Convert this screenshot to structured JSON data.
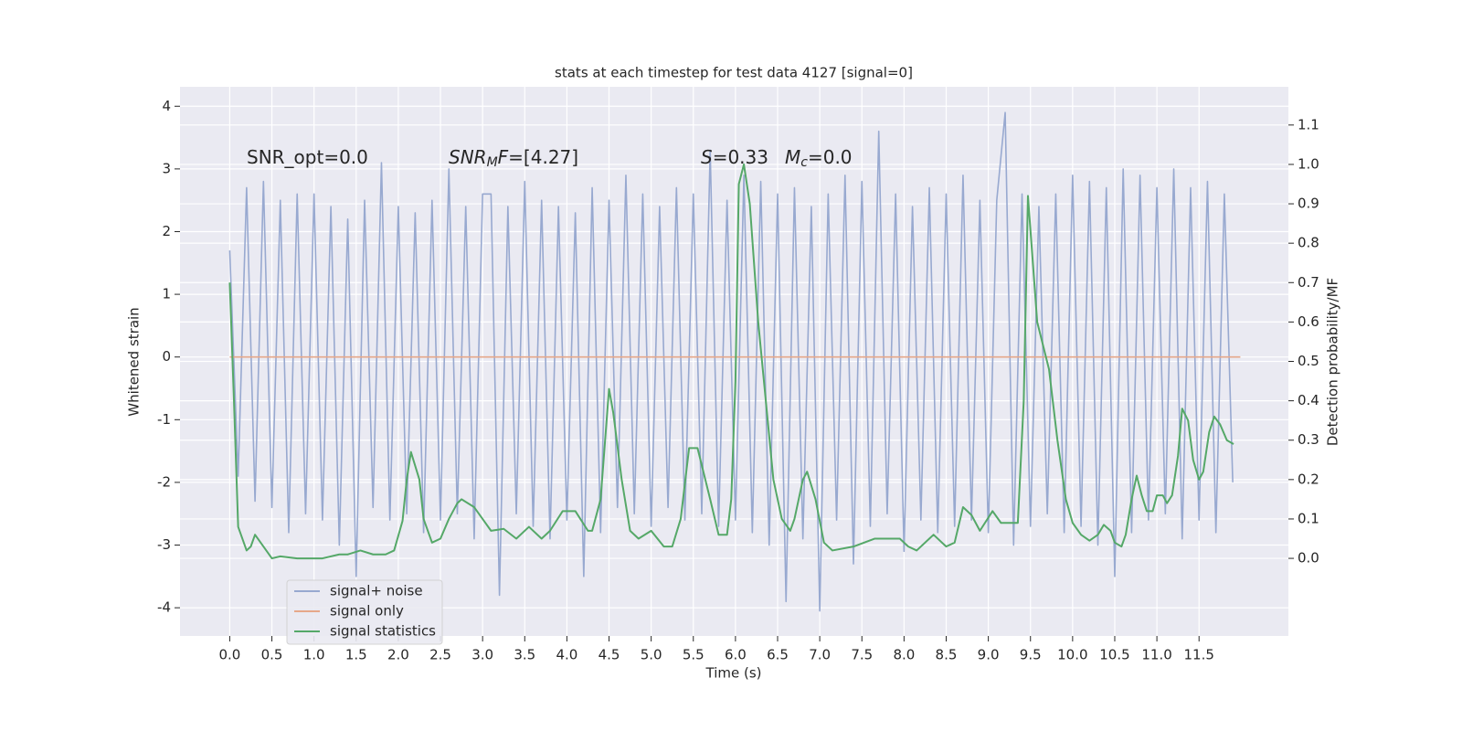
{
  "chart_data": {
    "type": "line",
    "title": "stats at each timestep for test data 4127 [signal=0]",
    "xlabel": "Time (s)",
    "ylabel": "Whitened strain",
    "y2label": "Detection probability/MF",
    "grid": true,
    "legend": "lower left",
    "xlim": [
      -0.59,
      12.56
    ],
    "ylim": [
      -4.45,
      4.31
    ],
    "y2lim": [
      -0.197,
      1.197
    ],
    "xticks": [
      {
        "value": 0,
        "label": "0.0"
      },
      0.5,
      {
        "value": 1,
        "label": "1.0"
      },
      1.5,
      {
        "value": 2,
        "label": "2.0"
      },
      2.5,
      {
        "value": 3,
        "label": "3.0"
      },
      3.5,
      {
        "value": 4,
        "label": "4.0"
      },
      4.5,
      {
        "value": 5,
        "label": "5.0"
      },
      5.5,
      {
        "value": 6,
        "label": "6.0"
      },
      6.5,
      {
        "value": 7,
        "label": "7.0"
      },
      7.5,
      {
        "value": 8,
        "label": "8.0"
      },
      8.5,
      {
        "value": 9,
        "label": "9.0"
      },
      9.5,
      {
        "value": 10,
        "label": "10.0"
      },
      10.5,
      {
        "value": 11,
        "label": "11.0"
      },
      11.5
    ],
    "yticks": [
      -4,
      -3,
      -2,
      -1,
      0,
      1,
      2,
      3,
      4
    ],
    "y2ticks": [
      {
        "value": 0,
        "label": "0.0"
      },
      0.1,
      0.2,
      0.3,
      0.4,
      0.5,
      0.6,
      0.7,
      0.8,
      0.9,
      {
        "value": 1,
        "label": "1.0"
      },
      1.1
    ],
    "annotations": [
      {
        "parts": [
          {
            "text": "SNR_opt=0.0"
          }
        ]
      },
      {
        "parts": [
          {
            "text": "SNR",
            "italic": true
          },
          {
            "text": "M",
            "italic": true,
            "sub": true
          },
          {
            "text": "F",
            "italic": true
          },
          {
            "text": "=[4.27]"
          }
        ]
      },
      {
        "parts": [
          {
            "text": "S",
            "italic": true
          },
          {
            "text": "=0.33"
          }
        ]
      },
      {
        "parts": [
          {
            "text": "M",
            "italic": true
          },
          {
            "text": "c",
            "italic": true,
            "sub": true
          },
          {
            "text": "=0.0"
          }
        ]
      }
    ],
    "series": [
      {
        "name": "signal+ noise",
        "color": "#98a9d0",
        "x": [
          0,
          0.1,
          0.2,
          0.3,
          0.4,
          0.5,
          0.6,
          0.7,
          0.8,
          0.9,
          1,
          1.1,
          1.2,
          1.3,
          1.4,
          1.5,
          1.6,
          1.7,
          1.8,
          1.9,
          2,
          2.1,
          2.2,
          2.3,
          2.4,
          2.5,
          2.6,
          2.7,
          2.8,
          2.9,
          3,
          3.1,
          3.2,
          3.3,
          3.4,
          3.5,
          3.6,
          3.7,
          3.8,
          3.9,
          4,
          4.1,
          4.2,
          4.3,
          4.4,
          4.5,
          4.6,
          4.7,
          4.8,
          4.9,
          5,
          5.1,
          5.2,
          5.3,
          5.4,
          5.5,
          5.6,
          5.7,
          5.8,
          5.9,
          6,
          6.1,
          6.2,
          6.3,
          6.4,
          6.5,
          6.6,
          6.7,
          6.8,
          6.9,
          7,
          7.1,
          7.2,
          7.3,
          7.4,
          7.5,
          7.6,
          7.7,
          7.8,
          7.9,
          8,
          8.1,
          8.2,
          8.3,
          8.4,
          8.5,
          8.6,
          8.7,
          8.8,
          8.9,
          9,
          9.1,
          9.2,
          9.3,
          9.4,
          9.5,
          9.6,
          9.7,
          9.8,
          9.9,
          10,
          10.1,
          10.2,
          10.3,
          10.4,
          10.5,
          10.6,
          10.7,
          10.8,
          10.9,
          11,
          11.1,
          11.2,
          11.3,
          11.4,
          11.5,
          11.6,
          11.7,
          11.8,
          11.9
        ],
        "values": [
          1.7,
          -1.9,
          2.7,
          -2.3,
          2.8,
          -2.4,
          2.5,
          -2.8,
          2.6,
          -2.5,
          2.6,
          -2.6,
          2.4,
          -3.0,
          2.2,
          -3.5,
          2.5,
          -2.4,
          3.1,
          -2.6,
          2.4,
          -2.5,
          2.3,
          -2.8,
          2.5,
          -2.6,
          3.0,
          -2.5,
          2.4,
          -2.9,
          2.6,
          2.6,
          -3.8,
          2.4,
          -2.5,
          2.8,
          -2.7,
          2.5,
          -2.9,
          2.4,
          -2.6,
          2.3,
          -3.5,
          2.7,
          -2.8,
          2.5,
          -2.4,
          2.9,
          -2.5,
          2.6,
          -2.7,
          2.4,
          -2.4,
          2.7,
          -2.6,
          2.6,
          -2.5,
          3.3,
          -2.7,
          2.5,
          -2.6,
          2.9,
          -2.8,
          2.8,
          -3.0,
          2.6,
          -3.9,
          2.7,
          -2.9,
          2.4,
          -4.05,
          2.6,
          -2.6,
          2.9,
          -3.3,
          2.8,
          -2.7,
          3.6,
          -2.5,
          2.6,
          -3.1,
          2.4,
          -2.6,
          2.7,
          -2.8,
          2.6,
          -2.7,
          2.9,
          -2.6,
          2.5,
          -2.8,
          2.5,
          3.9,
          -3.0,
          2.6,
          -2.7,
          2.4,
          -2.5,
          2.6,
          -2.8,
          2.9,
          -2.7,
          2.8,
          -3.0,
          2.7,
          -3.5,
          3.0,
          -2.8,
          2.9,
          -2.6,
          2.7,
          -2.5,
          3.0,
          -2.9,
          2.7,
          -2.6,
          2.8,
          -2.8,
          2.6,
          -2.0
        ]
      },
      {
        "name": "signal only",
        "color": "#e6a88a",
        "x": [
          0,
          11.99
        ],
        "values": [
          0,
          0
        ]
      },
      {
        "name": "signal statistics",
        "color": "#55a868",
        "axis": "y2",
        "x": [
          0,
          0.05,
          0.1,
          0.2,
          0.25,
          0.3,
          0.5,
          0.6,
          0.8,
          1.0,
          1.1,
          1.3,
          1.4,
          1.55,
          1.7,
          1.85,
          1.95,
          2.05,
          2.1,
          2.15,
          2.25,
          2.3,
          2.4,
          2.5,
          2.6,
          2.7,
          2.75,
          2.9,
          3.0,
          3.1,
          3.25,
          3.4,
          3.55,
          3.7,
          3.8,
          3.95,
          4.1,
          4.25,
          4.3,
          4.4,
          4.5,
          4.55,
          4.65,
          4.75,
          4.85,
          5.0,
          5.15,
          5.25,
          5.35,
          5.45,
          5.55,
          5.7,
          5.8,
          5.9,
          5.95,
          6.0,
          6.04,
          6.1,
          6.17,
          6.27,
          6.45,
          6.55,
          6.65,
          6.7,
          6.8,
          6.85,
          6.95,
          7.05,
          7.15,
          7.4,
          7.65,
          7.85,
          7.95,
          8.05,
          8.15,
          8.3,
          8.35,
          8.5,
          8.6,
          8.7,
          8.8,
          8.9,
          9.05,
          9.15,
          9.35,
          9.42,
          9.47,
          9.58,
          9.72,
          9.82,
          9.92,
          10.0,
          10.1,
          10.2,
          10.3,
          10.37,
          10.45,
          10.5,
          10.58,
          10.63,
          10.7,
          10.76,
          10.82,
          10.88,
          10.95,
          11.0,
          11.07,
          11.12,
          11.18,
          11.25,
          11.3,
          11.37,
          11.43,
          11.5,
          11.55,
          11.62,
          11.68,
          11.75,
          11.83,
          11.91
        ],
        "values": [
          0.7,
          0.4,
          0.08,
          0.02,
          0.03,
          0.06,
          0.0,
          0.005,
          0.0,
          0.0,
          0.0,
          0.01,
          0.01,
          0.02,
          0.01,
          0.01,
          0.02,
          0.095,
          0.2,
          0.27,
          0.2,
          0.1,
          0.04,
          0.05,
          0.1,
          0.14,
          0.15,
          0.13,
          0.1,
          0.07,
          0.075,
          0.05,
          0.08,
          0.05,
          0.07,
          0.12,
          0.12,
          0.07,
          0.07,
          0.15,
          0.43,
          0.37,
          0.2,
          0.07,
          0.05,
          0.07,
          0.03,
          0.03,
          0.1,
          0.28,
          0.28,
          0.15,
          0.06,
          0.06,
          0.15,
          0.45,
          0.95,
          1.0,
          0.9,
          0.6,
          0.2,
          0.1,
          0.07,
          0.1,
          0.2,
          0.22,
          0.15,
          0.04,
          0.02,
          0.03,
          0.05,
          0.05,
          0.05,
          0.03,
          0.02,
          0.05,
          0.06,
          0.03,
          0.04,
          0.13,
          0.11,
          0.07,
          0.12,
          0.09,
          0.09,
          0.4,
          0.92,
          0.6,
          0.48,
          0.3,
          0.15,
          0.09,
          0.06,
          0.045,
          0.06,
          0.085,
          0.07,
          0.04,
          0.03,
          0.06,
          0.15,
          0.21,
          0.16,
          0.12,
          0.12,
          0.16,
          0.16,
          0.14,
          0.16,
          0.26,
          0.38,
          0.35,
          0.25,
          0.2,
          0.22,
          0.32,
          0.36,
          0.34,
          0.3,
          0.29
        ]
      }
    ]
  }
}
